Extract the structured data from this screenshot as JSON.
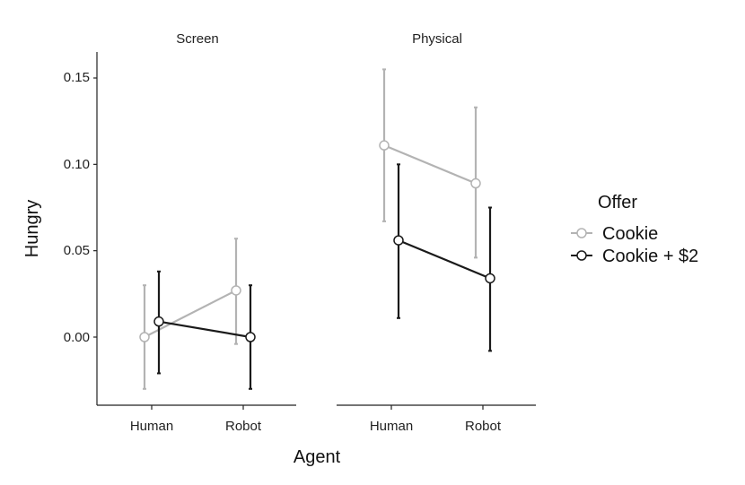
{
  "chart_data": {
    "type": "line",
    "xlabel": "Agent",
    "ylabel": "Hungry",
    "ylim": [
      -0.04,
      0.16
    ],
    "yticks": [
      "0.00",
      "0.05",
      "0.10",
      "0.15"
    ],
    "ytick_values": [
      0.0,
      0.05,
      0.1,
      0.15
    ],
    "categories": [
      "Human",
      "Robot"
    ],
    "legend": {
      "title": "Offer",
      "position": "right",
      "entries": [
        "Cookie",
        "Cookie + $2"
      ]
    },
    "series_colors": {
      "Cookie": "#b3b3b3",
      "Cookie + $2": "#1a1a1a"
    },
    "panels": [
      {
        "title": "Screen",
        "series": [
          {
            "name": "Cookie",
            "values": [
              0.0,
              0.027
            ],
            "lower": [
              -0.03,
              -0.004
            ],
            "upper": [
              0.03,
              0.057
            ]
          },
          {
            "name": "Cookie + $2",
            "values": [
              0.009,
              0.0
            ],
            "lower": [
              -0.021,
              -0.03
            ],
            "upper": [
              0.038,
              0.03
            ]
          }
        ]
      },
      {
        "title": "Physical",
        "series": [
          {
            "name": "Cookie",
            "values": [
              0.111,
              0.089
            ],
            "lower": [
              0.067,
              0.046
            ],
            "upper": [
              0.155,
              0.133
            ]
          },
          {
            "name": "Cookie + $2",
            "values": [
              0.056,
              0.034
            ],
            "lower": [
              0.011,
              -0.008
            ],
            "upper": [
              0.1,
              0.075
            ]
          }
        ]
      }
    ]
  }
}
